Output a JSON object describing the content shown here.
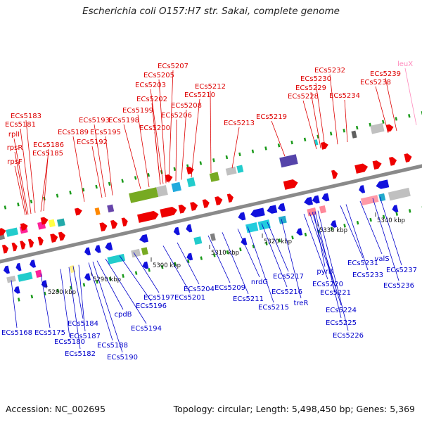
{
  "title": "Escherichia coli O157:H7 str. Sakai, complete genome",
  "footer": {
    "accession": "Accession: NC_002695",
    "summary": "Topology: circular; Length: 5,498,450 bp; Genes: 5,369"
  },
  "colors": {
    "forward_label": "#dd0000",
    "reverse_label": "#0000cc",
    "rna_label": "#ff88bb",
    "backbone": "#8a8a8a"
  },
  "scale_ticks": [
    "5280 kbp",
    "5290 kbp",
    "5300 kbp",
    "5310 kbp",
    "5320 kbp",
    "5330 kbp",
    "5340 kbp"
  ],
  "forward_genes": [
    "ECs5183",
    "ECs5181",
    "rplI",
    "rpsR",
    "rpsF",
    "ECs5186",
    "ECs5185",
    "ECs5189",
    "ECs5193",
    "ECs5192",
    "ECs5195",
    "ECs5198",
    "ECs5199",
    "ECs5200",
    "ECs5202",
    "ECs5203",
    "ECs5205",
    "ECs5207",
    "ECs5206",
    "ECs5208",
    "ECs5210",
    "ECs5212",
    "ECs5213",
    "ECs5219",
    "ECs5228",
    "ECs5229",
    "ECs5230",
    "ECs5232",
    "ECs5234",
    "ECs5238",
    "ECs5239"
  ],
  "rna_genes": [
    "leuX"
  ],
  "reverse_genes": [
    "ECs5168",
    "ECs5175",
    "ECs5180",
    "ECs5182",
    "ECs5184",
    "ECs5187",
    "ECs5188",
    "ECs5190",
    "cpdB",
    "ECs5194",
    "ECs5196",
    "ECs5197",
    "ECs5201",
    "ECs5204",
    "ECs5209",
    "ECs5211",
    "nrdG",
    "ECs5215",
    "ECs5216",
    "ECs5217",
    "treR",
    "pyrB",
    "ECs5220",
    "ECs5221",
    "ECs5224",
    "ECs5225",
    "ECs5226",
    "ECs5231",
    "ECs5233",
    "valS",
    "ECs5236",
    "ECs5237"
  ]
}
